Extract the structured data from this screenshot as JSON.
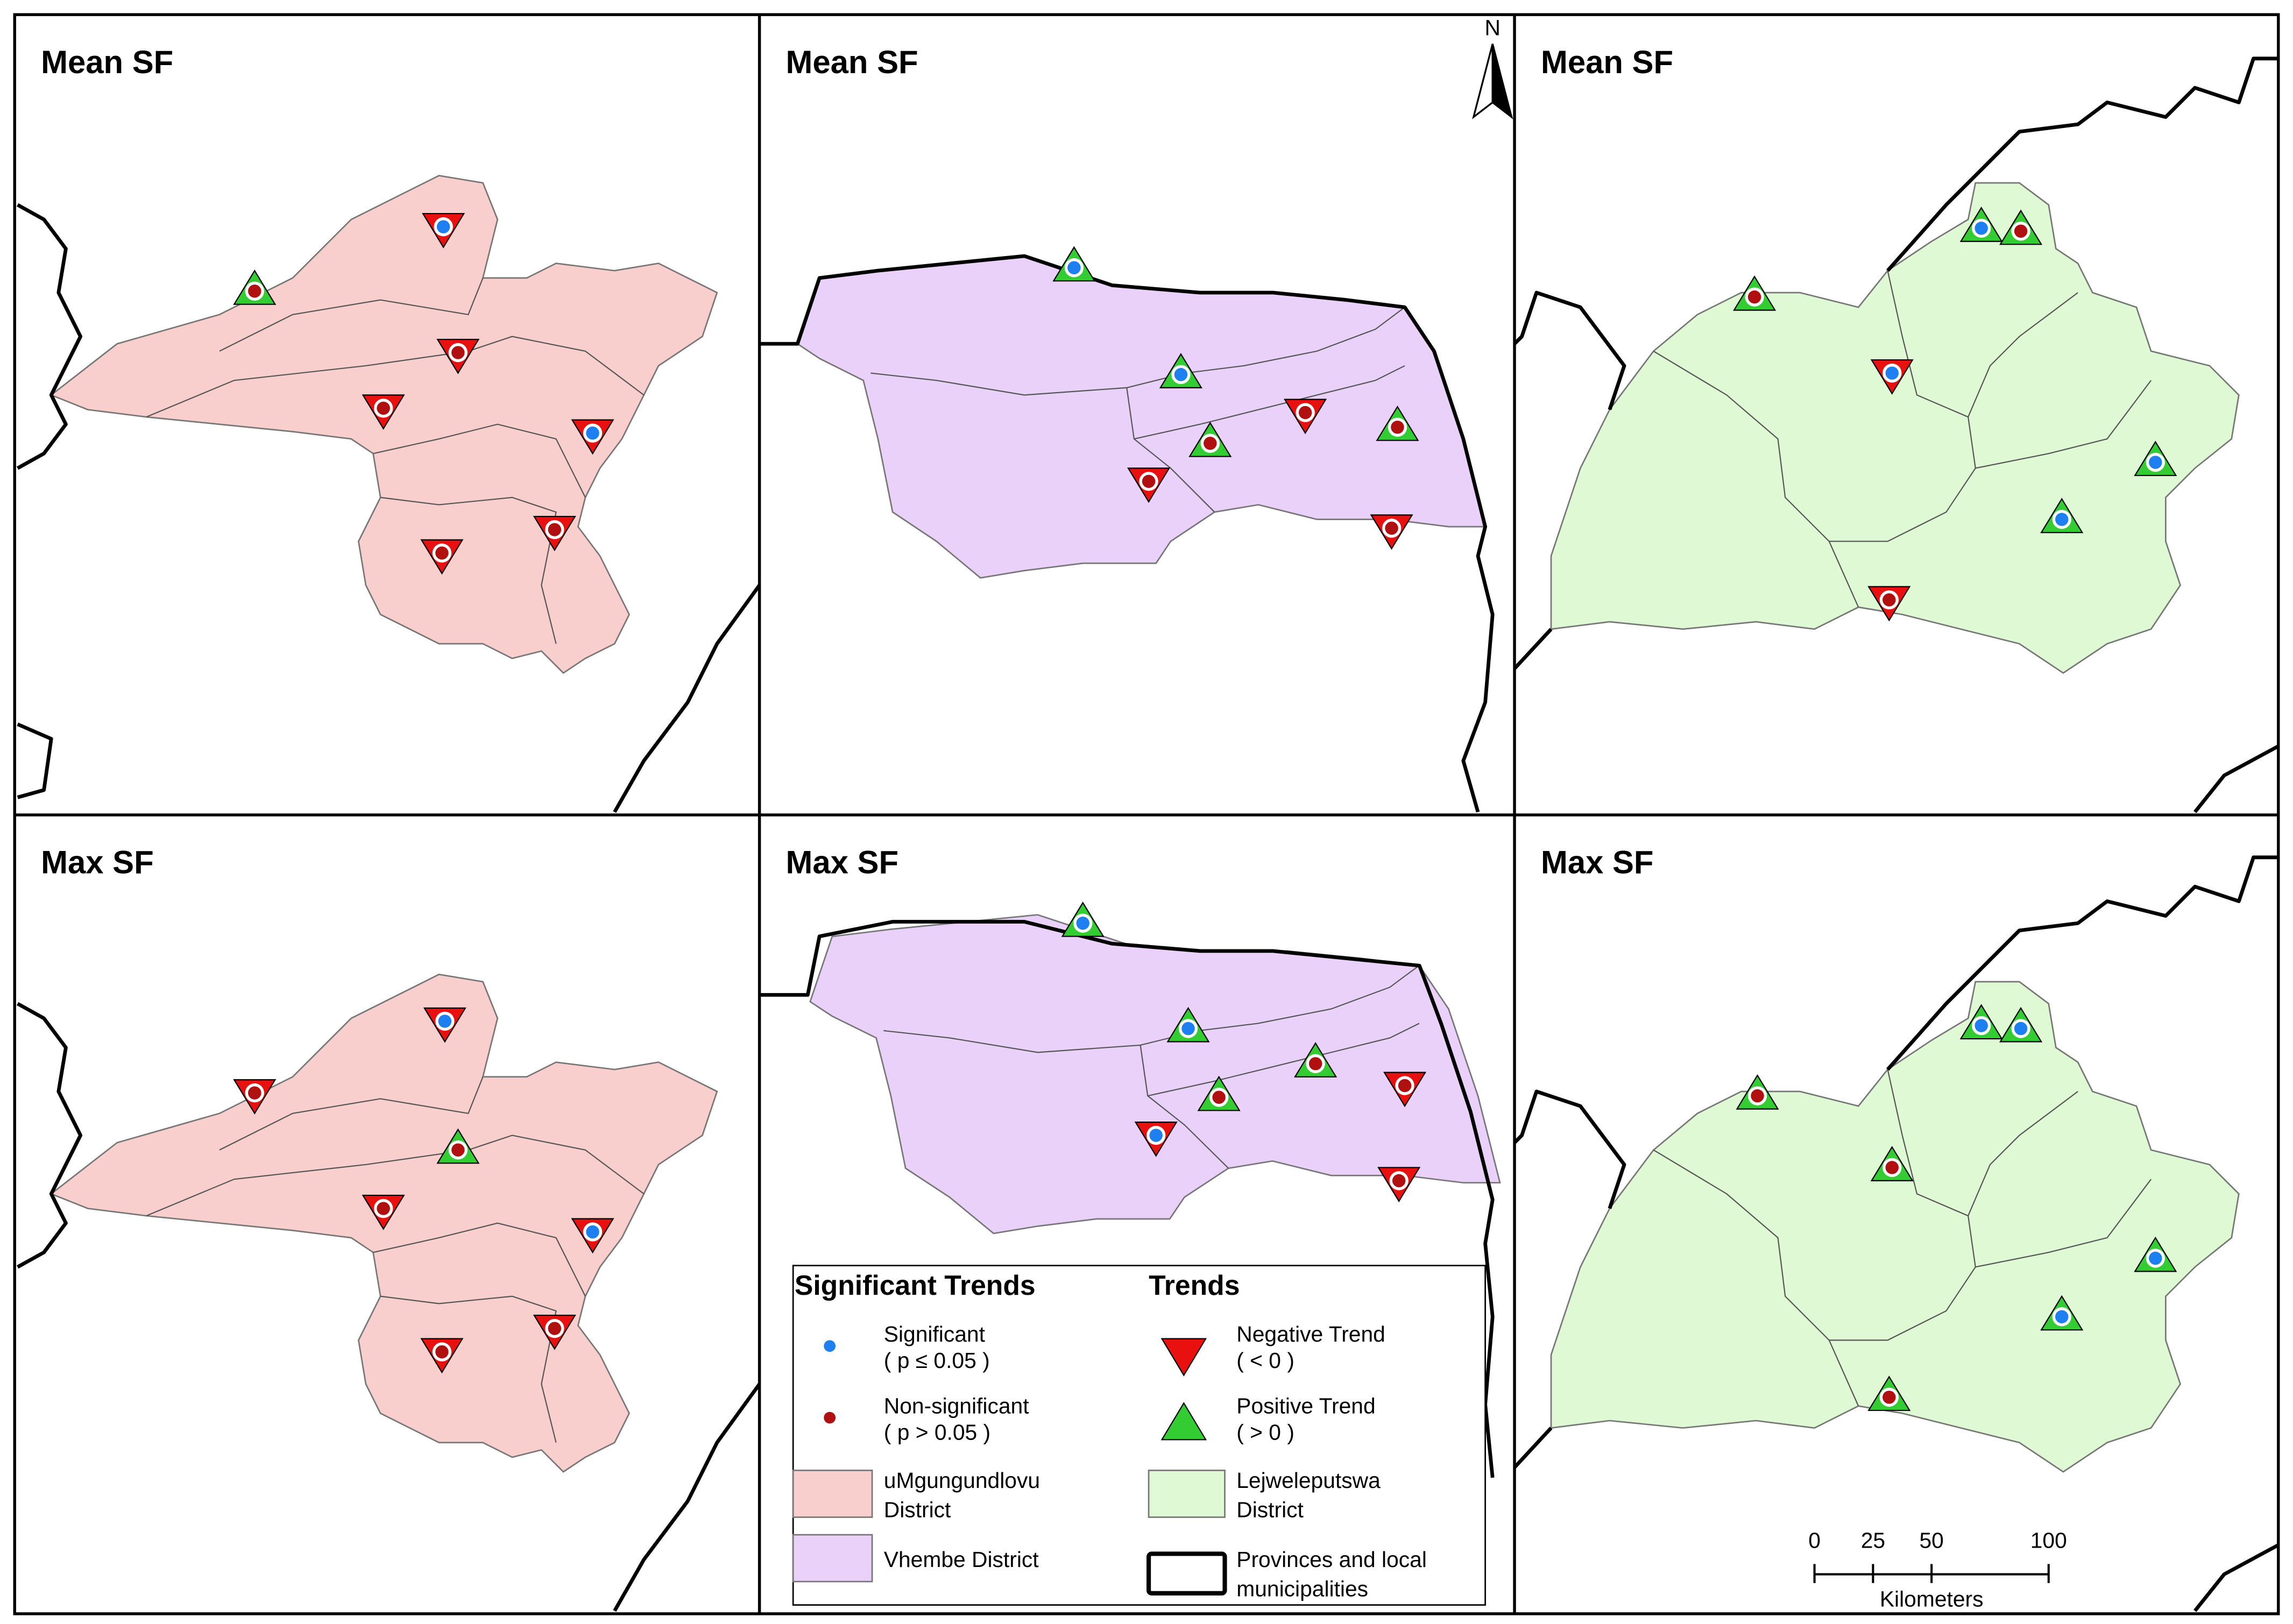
{
  "panels": [
    {
      "title": "Mean SF"
    },
    {
      "title": "Mean SF"
    },
    {
      "title": "Mean SF"
    },
    {
      "title": "Max SF"
    },
    {
      "title": "Max SF"
    },
    {
      "title": "Max SF"
    }
  ],
  "north": "N",
  "legend": {
    "significance_title": "Significant Trends",
    "trends_title": "Trends",
    "significant": [
      "Significant",
      "( p ≤ 0.05 )"
    ],
    "non_significant": [
      "Non-significant",
      "( p > 0.05 )"
    ],
    "umgungundlovu": [
      "uMgungundlovu",
      "District"
    ],
    "vhembe": [
      "Vhembe District"
    ],
    "negative": [
      "Negative Trend",
      "( < 0 )"
    ],
    "positive": [
      "Positive Trend",
      "( > 0 )"
    ],
    "lejweleputswa": [
      "Lejweleputswa",
      "District"
    ],
    "provinces": [
      "Provinces and local",
      "municipalities"
    ]
  },
  "scale": {
    "ticks": [
      0,
      25,
      50,
      100
    ],
    "unit": "Kilometers"
  }
}
